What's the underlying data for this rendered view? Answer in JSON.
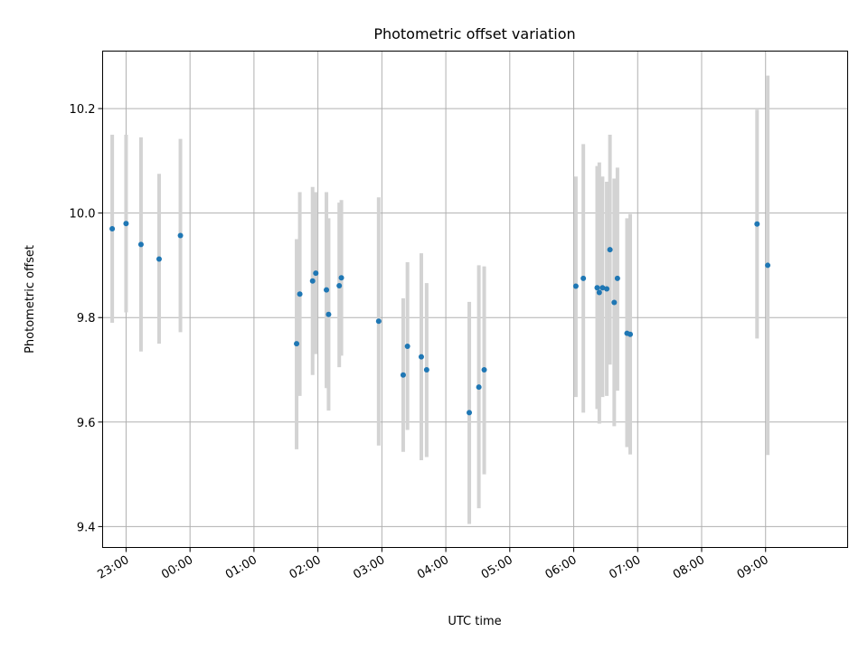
{
  "chart_data": {
    "type": "scatter",
    "title": "Photometric offset variation",
    "xlabel": "UTC time",
    "ylabel": "Photometric offset",
    "x_axis": "time",
    "xlim": [
      "22:38",
      "10:17"
    ],
    "ylim": [
      9.36,
      10.31
    ],
    "x_ticks": [
      "23:00",
      "00:00",
      "01:00",
      "02:00",
      "03:00",
      "04:00",
      "05:00",
      "06:00",
      "07:00",
      "08:00",
      "09:00"
    ],
    "y_ticks": [
      9.4,
      9.6,
      9.8,
      10.0,
      10.2
    ],
    "y_tick_labels": [
      "9.4",
      "9.6",
      "9.8",
      "10.0",
      "10.2"
    ],
    "grid": true,
    "colors": {
      "point": "#1f77b4",
      "errorbar": "#d3d3d3",
      "grid": "#b0b0b0"
    },
    "series": [
      {
        "points": [
          {
            "t": "22:47",
            "y": 9.97,
            "ylo": 9.79,
            "yhi": 10.15
          },
          {
            "t": "23:00",
            "y": 9.98,
            "ylo": 9.81,
            "yhi": 10.15
          },
          {
            "t": "23:14",
            "y": 9.94,
            "ylo": 9.735,
            "yhi": 10.145
          },
          {
            "t": "23:31",
            "y": 9.912,
            "ylo": 9.75,
            "yhi": 10.075
          },
          {
            "t": "23:51",
            "y": 9.957,
            "ylo": 9.772,
            "yhi": 10.142
          },
          {
            "t": "01:40",
            "y": 9.75,
            "ylo": 9.548,
            "yhi": 9.95
          },
          {
            "t": "01:43",
            "y": 9.845,
            "ylo": 9.65,
            "yhi": 10.04
          },
          {
            "t": "01:55",
            "y": 9.87,
            "ylo": 9.69,
            "yhi": 10.05
          },
          {
            "t": "01:58",
            "y": 9.885,
            "ylo": 9.73,
            "yhi": 10.04
          },
          {
            "t": "02:08",
            "y": 9.853,
            "ylo": 9.665,
            "yhi": 10.04
          },
          {
            "t": "02:10",
            "y": 9.806,
            "ylo": 9.622,
            "yhi": 9.99
          },
          {
            "t": "02:20",
            "y": 9.861,
            "ylo": 9.705,
            "yhi": 10.02
          },
          {
            "t": "02:22",
            "y": 9.876,
            "ylo": 9.727,
            "yhi": 10.025
          },
          {
            "t": "02:57",
            "y": 9.793,
            "ylo": 9.555,
            "yhi": 10.03
          },
          {
            "t": "03:20",
            "y": 9.69,
            "ylo": 9.543,
            "yhi": 9.837
          },
          {
            "t": "03:24",
            "y": 9.745,
            "ylo": 9.585,
            "yhi": 9.906
          },
          {
            "t": "03:37",
            "y": 9.725,
            "ylo": 9.527,
            "yhi": 9.923
          },
          {
            "t": "03:42",
            "y": 9.7,
            "ylo": 9.533,
            "yhi": 9.866
          },
          {
            "t": "04:22",
            "y": 9.618,
            "ylo": 9.405,
            "yhi": 9.83
          },
          {
            "t": "04:31",
            "y": 9.667,
            "ylo": 9.435,
            "yhi": 9.9
          },
          {
            "t": "04:36",
            "y": 9.7,
            "ylo": 9.5,
            "yhi": 9.898
          },
          {
            "t": "06:02",
            "y": 9.86,
            "ylo": 9.648,
            "yhi": 10.07
          },
          {
            "t": "06:09",
            "y": 9.875,
            "ylo": 9.618,
            "yhi": 10.132
          },
          {
            "t": "06:22",
            "y": 9.857,
            "ylo": 9.625,
            "yhi": 10.09
          },
          {
            "t": "06:24",
            "y": 9.848,
            "ylo": 9.597,
            "yhi": 10.097
          },
          {
            "t": "06:27",
            "y": 9.857,
            "ylo": 9.648,
            "yhi": 10.07
          },
          {
            "t": "06:31",
            "y": 9.855,
            "ylo": 9.65,
            "yhi": 10.06
          },
          {
            "t": "06:34",
            "y": 9.93,
            "ylo": 9.71,
            "yhi": 10.15
          },
          {
            "t": "06:38",
            "y": 9.829,
            "ylo": 9.592,
            "yhi": 10.066
          },
          {
            "t": "06:41",
            "y": 9.875,
            "ylo": 9.66,
            "yhi": 10.087
          },
          {
            "t": "06:50",
            "y": 9.77,
            "ylo": 9.552,
            "yhi": 9.99
          },
          {
            "t": "06:53",
            "y": 9.768,
            "ylo": 9.538,
            "yhi": 9.998
          },
          {
            "t": "08:52",
            "y": 9.979,
            "ylo": 9.76,
            "yhi": 10.198
          },
          {
            "t": "09:02",
            "y": 9.9,
            "ylo": 9.537,
            "yhi": 10.263
          }
        ]
      }
    ]
  }
}
